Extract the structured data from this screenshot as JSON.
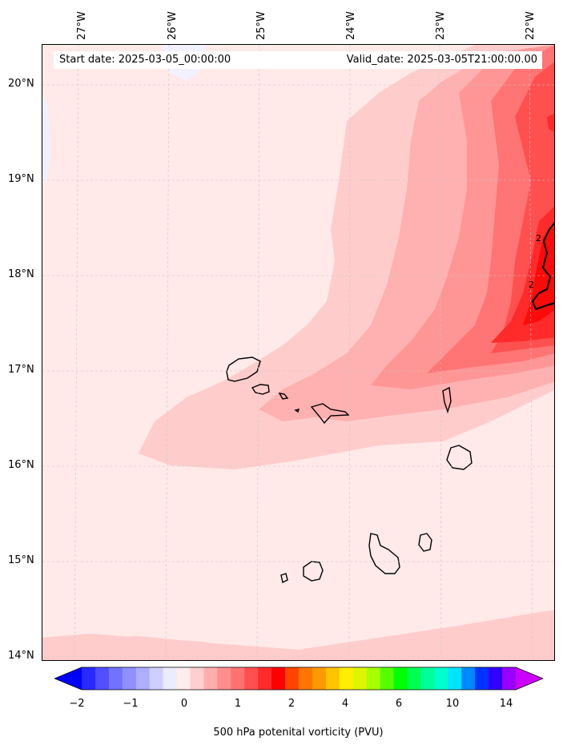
{
  "header": {
    "start_date": "Start date: 2025-03-05_00:00:00",
    "valid_date": "Valid_date: 2025-03-05T21:00:00.00"
  },
  "map": {
    "longitude_labels": [
      "27°W",
      "26°W",
      "25°W",
      "24°W",
      "23°W",
      "22°W"
    ],
    "latitude_labels": [
      "20°N",
      "19°N",
      "18°N",
      "17°N",
      "16°N",
      "15°N",
      "14°N"
    ],
    "contour_label": "2",
    "colors": {
      "background": "#ffe9e9",
      "level_0_5": "#ffcccc",
      "level_0_75": "#ffb0b0",
      "level_1": "#ff9696",
      "level_1_25": "#ff7474",
      "level_1_5": "#ff5050",
      "level_1_75": "#ff2a2a",
      "level_2": "#ff0a0a",
      "coastline": "#000000"
    }
  },
  "colorbar": {
    "tick_labels": [
      "−2",
      "−1",
      "0",
      "1",
      "2",
      "4",
      "6",
      "10",
      "14"
    ],
    "label": "500 hPa potenital vorticity (PVU)",
    "colors": [
      "#0000ff",
      "#2a2aff",
      "#4f4fff",
      "#7272ff",
      "#8f8fff",
      "#aeaeff",
      "#cfcfff",
      "#ececff",
      "#ffecec",
      "#ffcfcf",
      "#ffaeae",
      "#ff8f8f",
      "#ff7272",
      "#ff4f4f",
      "#ff2a2a",
      "#ff0000",
      "#ff4400",
      "#ff7700",
      "#ff9900",
      "#ffc400",
      "#ffee00",
      "#ddf500",
      "#a8ff00",
      "#55ff00",
      "#00ff00",
      "#00ff50",
      "#00ff99",
      "#00ffcc",
      "#00e5ff",
      "#0088ff",
      "#0033ff",
      "#3300ff",
      "#9900ff",
      "#cc00ff"
    ]
  }
}
